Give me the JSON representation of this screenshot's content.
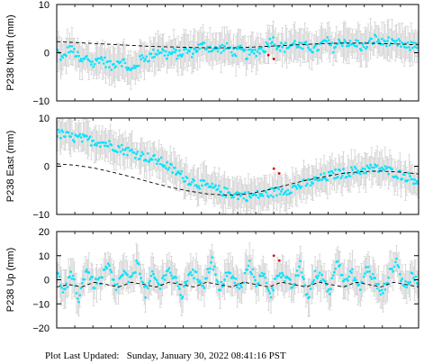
{
  "footer": {
    "label": "Plot Last Updated:",
    "timestamp": "Sunday, January 30, 2022 08:41:16 PST"
  },
  "chart_data": [
    {
      "type": "scatter",
      "ylabel": "P238 North (mm)",
      "ylim": [
        -10,
        10
      ],
      "yticks": [
        "10",
        "0",
        "−10"
      ],
      "grid": false,
      "x_range": [
        0,
        1
      ],
      "series": [
        {
          "role": "observations",
          "color": "#00e5ff",
          "error_color": "#cfcfcf",
          "values": [
            0.5,
            -1.5,
            1.0,
            0.0,
            -2.0,
            -1.0,
            -2.5,
            -1.0,
            -2.0,
            -3.0,
            -1.5,
            -2.0,
            -4.0,
            -2.5,
            -1.0,
            -1.0,
            0.0,
            0.5,
            -0.5,
            0.0,
            -0.5,
            0.5,
            0.0,
            1.0,
            1.5,
            1.0,
            0.5,
            1.0,
            1.0,
            0.0,
            0.5,
            -0.5,
            0.0,
            0.5,
            1.0,
            3.0,
            1.5,
            1.0,
            1.5,
            2.0,
            1.0,
            1.5,
            0.5,
            1.5,
            2.5,
            1.0,
            2.0,
            2.5,
            1.5,
            2.0,
            1.0,
            2.0,
            3.0,
            2.0,
            2.5,
            1.5,
            2.0,
            1.0,
            1.5,
            2.0
          ]
        },
        {
          "role": "model",
          "style": "dashed",
          "color": "#000000",
          "values": [
            2.3,
            2.1,
            1.9,
            1.7,
            1.5,
            1.3,
            1.2,
            1.1,
            1.0,
            1.0,
            1.1,
            1.3,
            1.5,
            1.7,
            1.9,
            2.0,
            2.0,
            1.9,
            1.8,
            1.6
          ]
        },
        {
          "role": "outliers",
          "color": "#dd0000",
          "points": [
            [
              0.585,
              -0.5
            ],
            [
              0.6,
              -1.3
            ]
          ]
        }
      ]
    },
    {
      "type": "scatter",
      "ylabel": "P238 East (mm)",
      "ylim": [
        -10,
        10
      ],
      "yticks": [
        "10",
        "0",
        "−10"
      ],
      "grid": false,
      "x_range": [
        0,
        1
      ],
      "series": [
        {
          "role": "observations",
          "color": "#00e5ff",
          "error_color": "#cfcfcf",
          "values": [
            6.8,
            6.5,
            6.0,
            5.8,
            5.5,
            5.2,
            5.0,
            4.5,
            4.0,
            3.5,
            3.0,
            2.5,
            2.0,
            1.5,
            1.0,
            0.0,
            -1.0,
            -2.0,
            -3.0,
            -3.5,
            -4.0,
            -4.5,
            -5.0,
            -5.5,
            -5.8,
            -6.0,
            -6.2,
            -6.0,
            -5.8,
            -5.5,
            -5.2,
            -5.0,
            -4.5,
            -4.0,
            -3.5,
            -3.0,
            -2.5,
            -2.0,
            -1.5,
            -1.5,
            -1.0,
            -1.0,
            -0.5,
            -0.5,
            -0.5,
            -1.0,
            -1.5,
            -2.0,
            -2.5,
            -3.0
          ]
        },
        {
          "role": "model",
          "style": "dashed",
          "color": "#000000",
          "values": [
            0.5,
            0.2,
            -0.4,
            -1.3,
            -2.3,
            -3.4,
            -4.4,
            -5.2,
            -5.8,
            -6.0,
            -5.8,
            -5.0,
            -4.0,
            -3.0,
            -2.2,
            -1.5,
            -1.1,
            -1.0,
            -1.2,
            -1.6
          ]
        },
        {
          "role": "outliers",
          "color": "#dd0000",
          "points": [
            [
              0.6,
              -0.5
            ],
            [
              0.615,
              -1.5
            ]
          ]
        }
      ]
    },
    {
      "type": "scatter",
      "ylabel": "P238 Up (mm)",
      "ylim": [
        -20,
        20
      ],
      "yticks": [
        "20",
        "10",
        "0",
        "−10",
        "−20"
      ],
      "grid": false,
      "x_range": [
        0,
        1
      ],
      "series": [
        {
          "role": "observations",
          "color": "#00e5ff",
          "error_color": "#cfcfcf",
          "values": [
            3,
            -5,
            2,
            -8,
            5,
            -2,
            0,
            6,
            -4,
            3,
            -1,
            8,
            -6,
            2,
            -3,
            5,
            0,
            -7,
            4,
            1,
            -2,
            9,
            -5,
            3,
            0,
            -4,
            7,
            -1,
            2,
            -6,
            4,
            0,
            -3,
            6,
            -8,
            2,
            1,
            -5,
            10,
            -2,
            3,
            -4,
            5,
            0,
            -6,
            2,
            8,
            -3,
            1,
            -1
          ]
        },
        {
          "role": "model",
          "style": "dashed",
          "color": "#000000",
          "values": [
            -3,
            -2,
            -3,
            -1,
            -2,
            -3,
            -1,
            -2,
            -3,
            -1,
            -2,
            -3,
            -1,
            -2,
            -3,
            -1,
            -2,
            -3,
            -1,
            -2,
            -3,
            -1,
            -2,
            -3,
            -1,
            -2,
            -3,
            -1,
            -2,
            -3
          ]
        },
        {
          "role": "outliers",
          "color": "#dd0000",
          "points": [
            [
              0.6,
              10
            ],
            [
              0.615,
              8
            ]
          ]
        }
      ]
    }
  ]
}
